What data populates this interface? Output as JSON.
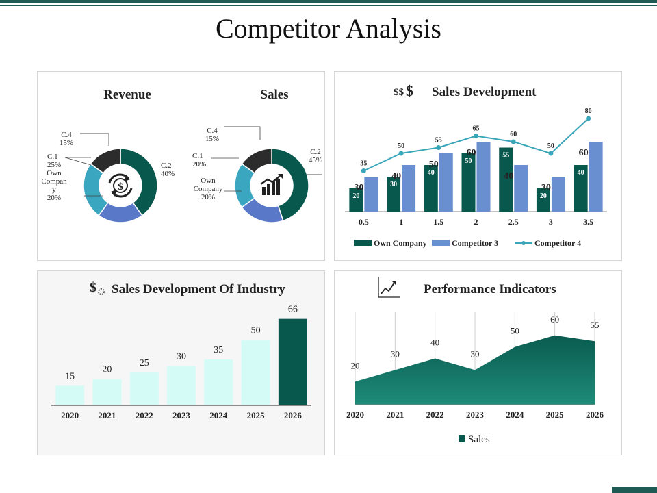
{
  "page": {
    "title": "Competitor Analysis"
  },
  "colors": {
    "dark_teal": "#08584e",
    "blue": "#6a8fd0",
    "line_teal": "#3aa6b9",
    "grey_dark": "#2c2c2c",
    "light_cyan": "#d5fbf7",
    "accent_bar": "#1f5a55"
  },
  "icons": {
    "revenue_center": "dollar-refresh-icon",
    "sales_center": "growth-bar-chart-icon",
    "sales_dev": "dollar-signs-icon",
    "industry": "dollar-gear-icon",
    "performance": "trend-line-icon"
  },
  "chart_data": [
    {
      "type": "pie",
      "title": "Revenue",
      "donut": true,
      "slices": [
        {
          "name": "C.2",
          "value": 40,
          "label": "40%",
          "color": "#08584e"
        },
        {
          "name": "Own Company",
          "value": 20,
          "label": "20%",
          "color": "#5a78c8"
        },
        {
          "name": "C.1",
          "value": 25,
          "label": "25%",
          "color": "#3aa6c0"
        },
        {
          "name": "C.4",
          "value": 15,
          "label": "15%",
          "color": "#2c2c2c"
        }
      ],
      "center_icon": "dollar-refresh-icon"
    },
    {
      "type": "pie",
      "title": "Sales",
      "donut": true,
      "slices": [
        {
          "name": "C.2",
          "value": 45,
          "label": "45%",
          "color": "#08584e"
        },
        {
          "name": "Own Company",
          "value": 20,
          "label": "20%",
          "color": "#5a78c8"
        },
        {
          "name": "C.1",
          "value": 20,
          "label": "20%",
          "color": "#3aa6c0"
        },
        {
          "name": "C.4",
          "value": 15,
          "label": "15%",
          "color": "#2c2c2c"
        }
      ],
      "center_icon": "growth-bar-chart-icon"
    },
    {
      "type": "bar",
      "title": "Sales Development",
      "categories": [
        "0.5",
        "1",
        "1.5",
        "2",
        "2.5",
        "3",
        "3.5"
      ],
      "series": [
        {
          "name": "Own Company",
          "kind": "bar",
          "values": [
            20,
            30,
            40,
            50,
            55,
            20,
            40
          ],
          "color": "#08584e"
        },
        {
          "name": "Competitor 3",
          "kind": "bar",
          "values": [
            30,
            40,
            50,
            60,
            40,
            30,
            60
          ],
          "color": "#6a8fd0"
        },
        {
          "name": "Competitor 4",
          "kind": "line",
          "values": [
            35,
            50,
            55,
            65,
            60,
            50,
            80
          ],
          "color": "#3aa6b9"
        }
      ],
      "ylim": [
        0,
        100
      ],
      "legend": "bottom"
    },
    {
      "type": "bar",
      "title": "Sales Development Of Industry",
      "categories": [
        "2020",
        "2021",
        "2022",
        "2023",
        "2024",
        "2025",
        "2026"
      ],
      "values": [
        15,
        20,
        25,
        30,
        35,
        50,
        66
      ],
      "highlight_index": 6,
      "colors": {
        "normal": "#d5fbf7",
        "highlight": "#08584e"
      },
      "ylim": [
        0,
        70
      ]
    },
    {
      "type": "area",
      "title": "Performance Indicators",
      "categories": [
        "2020",
        "2021",
        "2022",
        "2023",
        "2024",
        "2025",
        "2026"
      ],
      "series": [
        {
          "name": "Sales",
          "values": [
            20,
            30,
            40,
            30,
            50,
            60,
            55
          ],
          "color": "#08584e"
        }
      ],
      "ylim": [
        0,
        80
      ],
      "grid": "vertical",
      "legend": "bottom"
    }
  ]
}
